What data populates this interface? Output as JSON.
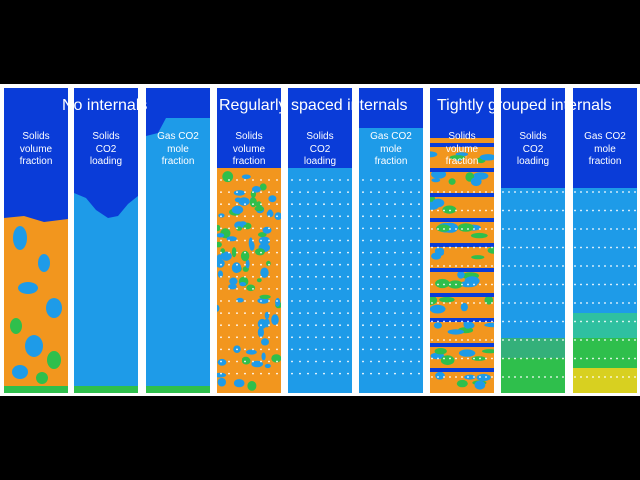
{
  "figure": {
    "groups": [
      {
        "title": "No internals",
        "internals": "none",
        "columns": [
          {
            "label": "Solids\nvolume\nfraction",
            "variable": "solids_volume_fraction"
          },
          {
            "label": "Solids\nCO2\nloading",
            "variable": "solids_co2_loading"
          },
          {
            "label": "Gas CO2\nmole\nfraction",
            "variable": "gas_co2_mole_fraction"
          }
        ]
      },
      {
        "title": "Regularly spaced internals",
        "internals": "regular",
        "columns": [
          {
            "label": "Solids\nvolume\nfraction",
            "variable": "solids_volume_fraction"
          },
          {
            "label": "Solids\nCO2\nloading",
            "variable": "solids_co2_loading"
          },
          {
            "label": "Gas CO2\nmole\nfraction",
            "variable": "gas_co2_mole_fraction"
          }
        ]
      },
      {
        "title": "Tightly grouped internals",
        "internals": "tight",
        "columns": [
          {
            "label": "Solids\nvolume\nfraction",
            "variable": "solids_volume_fraction"
          },
          {
            "label": "Solids\nCO2\nloading",
            "variable": "solids_co2_loading"
          },
          {
            "label": "Gas CO2\nmole\nfraction",
            "variable": "gas_co2_mole_fraction"
          }
        ]
      }
    ],
    "colors": {
      "background": "#000000",
      "frame": "#ffffff",
      "deep_blue": "#0a3cd8",
      "light_blue": "#1e9be8",
      "orange": "#f2961e",
      "green": "#2fbf4c",
      "yellow": "#d8d020",
      "internal_dot": "#ffffff"
    }
  }
}
